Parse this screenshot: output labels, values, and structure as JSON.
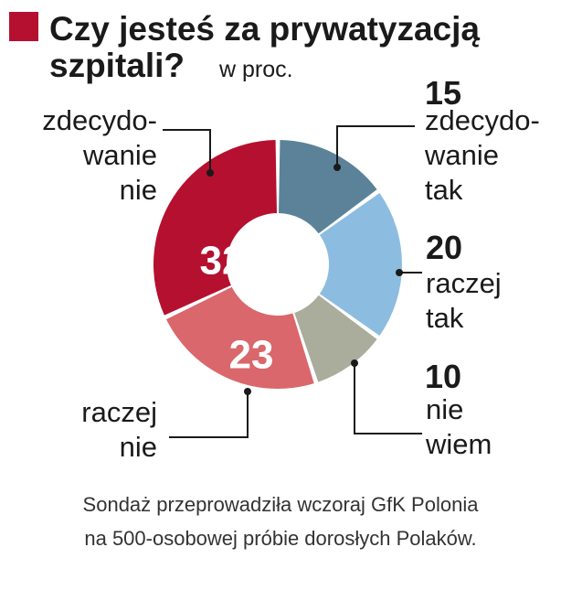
{
  "chart_data": {
    "type": "pie",
    "title": "Czy jesteś za prywatyzacją szpitali?",
    "unit_label": "w proc.",
    "slices": [
      {
        "value": 15,
        "label_lines": [
          "zdecydo-",
          "wanie",
          "tak"
        ],
        "color": "#5b8299"
      },
      {
        "value": 20,
        "label_lines": [
          "raczej",
          "tak"
        ],
        "color": "#8cbde0"
      },
      {
        "value": 10,
        "label_lines": [
          "nie",
          "wiem"
        ],
        "color": "#aaac9c"
      },
      {
        "value": 23,
        "label_lines": [
          "raczej",
          "nie"
        ],
        "color": "#d9676b"
      },
      {
        "value": 32,
        "label_lines": [
          "zdecydo-",
          "wanie",
          "nie"
        ],
        "color": "#b5102f"
      }
    ],
    "source_lines": [
      "Sondaż przeprowadziła wczoraj GfK Polonia",
      "na 500-osobowej próbie dorosłych Polaków."
    ]
  },
  "colors": {
    "title_marker": "#b5102f",
    "text": "#1a1a1a"
  }
}
